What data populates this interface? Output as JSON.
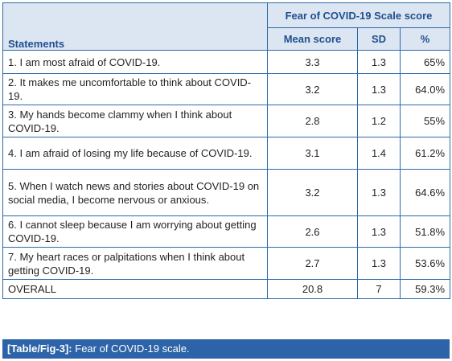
{
  "table": {
    "group_header": "Fear of COVID-19 Scale score",
    "columns": {
      "statements": "Statements",
      "mean": "Mean score",
      "sd": "SD",
      "pct": "%"
    },
    "rows": [
      {
        "statement": "1.  I am most afraid of COVID-19.",
        "mean": "3.3",
        "sd": "1.3",
        "pct": "65%"
      },
      {
        "statement": "2.  It makes me uncomfortable to think about COVID-19.",
        "mean": "3.2",
        "sd": "1.3",
        "pct": "64.0%"
      },
      {
        "statement": "3.  My hands become clammy when I think about COVID-19.",
        "mean": "2.8",
        "sd": "1.2",
        "pct": "55%"
      },
      {
        "statement": "4.  I am afraid of losing my life because of COVID-19.",
        "mean": "3.1",
        "sd": "1.4",
        "pct": "61.2%"
      },
      {
        "statement": "5.  When I watch news and stories about COVID-19 on social media, I become nervous or anxious.",
        "mean": "3.2",
        "sd": "1.3",
        "pct": "64.6%"
      },
      {
        "statement": "6.  I cannot sleep because I am worrying about getting COVID-19.",
        "mean": "2.6",
        "sd": "1.3",
        "pct": "51.8%"
      },
      {
        "statement": "7.  My heart races or palpitations when I think about getting COVID-19.",
        "mean": "2.7",
        "sd": "1.3",
        "pct": "53.6%"
      },
      {
        "statement": "OVERALL",
        "mean": "20.8",
        "sd": "7",
        "pct": "59.3%"
      }
    ]
  },
  "caption": {
    "label": "[Table/Fig-3]:",
    "text": "Fear of COVID-19 scale."
  },
  "colors": {
    "border": "#2b6aa8",
    "header_bg": "#dce6f2",
    "header_text": "#1f4f8f",
    "caption_bg": "#2d63a8"
  }
}
